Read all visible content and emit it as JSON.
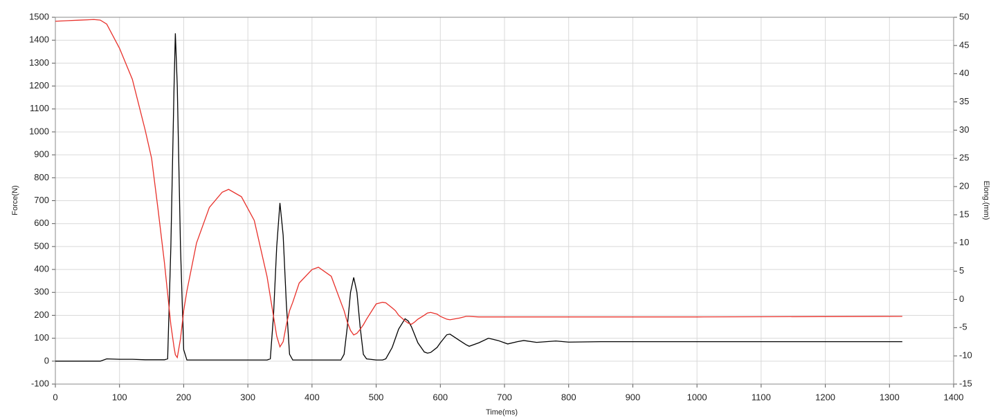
{
  "chart_data": {
    "type": "line",
    "xlabel": "Time(ms)",
    "ylabel": "Force(N)",
    "y2label": "Elong.(mm)",
    "grid": true,
    "x": [
      0,
      20,
      40,
      60,
      70,
      80,
      100,
      120,
      140,
      150,
      160,
      170,
      175,
      180,
      185,
      187,
      190,
      195,
      200,
      205,
      220,
      240,
      260,
      270,
      290,
      310,
      330,
      335,
      340,
      345,
      350,
      355,
      360,
      365,
      370,
      380,
      400,
      410,
      430,
      445,
      450,
      455,
      460,
      465,
      470,
      475,
      480,
      485,
      500,
      510,
      515,
      525,
      530,
      535,
      545,
      550,
      555,
      560,
      565,
      575,
      580,
      585,
      595,
      600,
      610,
      615,
      630,
      640,
      645,
      660,
      675,
      690,
      700,
      705,
      720,
      730,
      750,
      780,
      800,
      850,
      1000,
      1320
    ],
    "series": [
      {
        "color": "#000000",
        "axis": "y",
        "values": [
          0,
          0,
          0,
          0,
          0,
          10,
          8,
          8,
          6,
          6,
          6,
          6,
          10,
          500,
          1200,
          1430,
          1200,
          500,
          50,
          5,
          5,
          5,
          5,
          5,
          5,
          5,
          5,
          10,
          200,
          500,
          690,
          550,
          250,
          30,
          5,
          5,
          5,
          5,
          5,
          5,
          30,
          150,
          300,
          365,
          300,
          150,
          30,
          10,
          5,
          5,
          10,
          60,
          100,
          140,
          185,
          175,
          150,
          115,
          80,
          40,
          35,
          38,
          60,
          80,
          115,
          118,
          90,
          72,
          65,
          80,
          100,
          90,
          80,
          75,
          85,
          90,
          82,
          88,
          83,
          85,
          85,
          85
        ]
      },
      {
        "color": "#e8302a",
        "axis": "y2",
        "values": [
          49.3,
          49.4,
          49.5,
          49.6,
          49.5,
          48.8,
          44.5,
          39,
          30,
          25,
          16,
          6.5,
          1,
          -4.5,
          -8.5,
          -9.8,
          -10.3,
          -7,
          -2,
          1.5,
          10,
          16.3,
          19,
          19.5,
          18.2,
          14,
          4,
          0.5,
          -3,
          -6.5,
          -8.4,
          -7.5,
          -4.5,
          -2,
          -0.5,
          2.9,
          5.3,
          5.7,
          4.1,
          -0.5,
          -2,
          -4,
          -5.5,
          -6.3,
          -6,
          -5.3,
          -4.5,
          -3.5,
          -0.8,
          -0.5,
          -0.6,
          -1.5,
          -2,
          -2.8,
          -3.8,
          -4.2,
          -4.4,
          -4,
          -3.5,
          -2.8,
          -2.4,
          -2.3,
          -2.6,
          -3,
          -3.5,
          -3.6,
          -3.3,
          -3,
          -3,
          -3.1,
          -3.1,
          -3.1,
          -3.1,
          -3.1,
          -3.1,
          -3.1,
          -3.1,
          -3.1,
          -3.1,
          -3.1,
          -3.1,
          -3
        ]
      }
    ],
    "xlim": [
      0,
      1400
    ],
    "xticks": [
      0,
      100,
      200,
      300,
      400,
      500,
      600,
      700,
      800,
      900,
      1000,
      1100,
      1200,
      1300,
      1400
    ],
    "ylim": [
      -100,
      1500
    ],
    "yticks": [
      -100,
      0,
      100,
      200,
      300,
      400,
      500,
      600,
      700,
      800,
      900,
      1000,
      1100,
      1200,
      1300,
      1400,
      1500
    ],
    "y2lim": [
      -15,
      50
    ],
    "y2ticks": [
      -15,
      -10,
      -5,
      0,
      5,
      10,
      15,
      20,
      25,
      30,
      35,
      40,
      45,
      50
    ]
  }
}
